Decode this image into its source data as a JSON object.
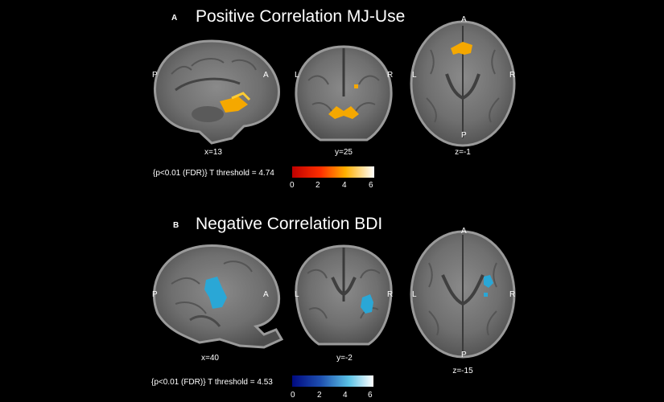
{
  "panel_a": {
    "letter": "A",
    "title": "Positive Correlation MJ-Use",
    "sagittal": {
      "slice_label": "x=13",
      "orient_left": "P",
      "orient_right": "A"
    },
    "coronal": {
      "slice_label": "y=25",
      "orient_left": "L",
      "orient_right": "R"
    },
    "axial": {
      "slice_label": "z=-1",
      "orient_left": "L",
      "orient_right": "R",
      "orient_top": "A",
      "orient_bottom": "P"
    },
    "threshold_text": "{p<0.01 (FDR)} T threshold = 4.74",
    "colorbar_ticks": [
      "0",
      "2",
      "4",
      "6"
    ],
    "blob_color": "#f5a800"
  },
  "panel_b": {
    "letter": "B",
    "title": "Negative Correlation BDI",
    "sagittal": {
      "slice_label": "x=40",
      "orient_left": "P",
      "orient_right": "A"
    },
    "coronal": {
      "slice_label": "y=-2",
      "orient_left": "L",
      "orient_right": "R"
    },
    "axial": {
      "slice_label": "z=-15",
      "orient_left": "L",
      "orient_right": "R",
      "orient_top": "A",
      "orient_bottom": "P"
    },
    "threshold_text": "{p<0.01 (FDR)} T threshold = 4.53",
    "colorbar_ticks": [
      "0",
      "2",
      "4",
      "6"
    ],
    "blob_color": "#2aa7d6"
  }
}
